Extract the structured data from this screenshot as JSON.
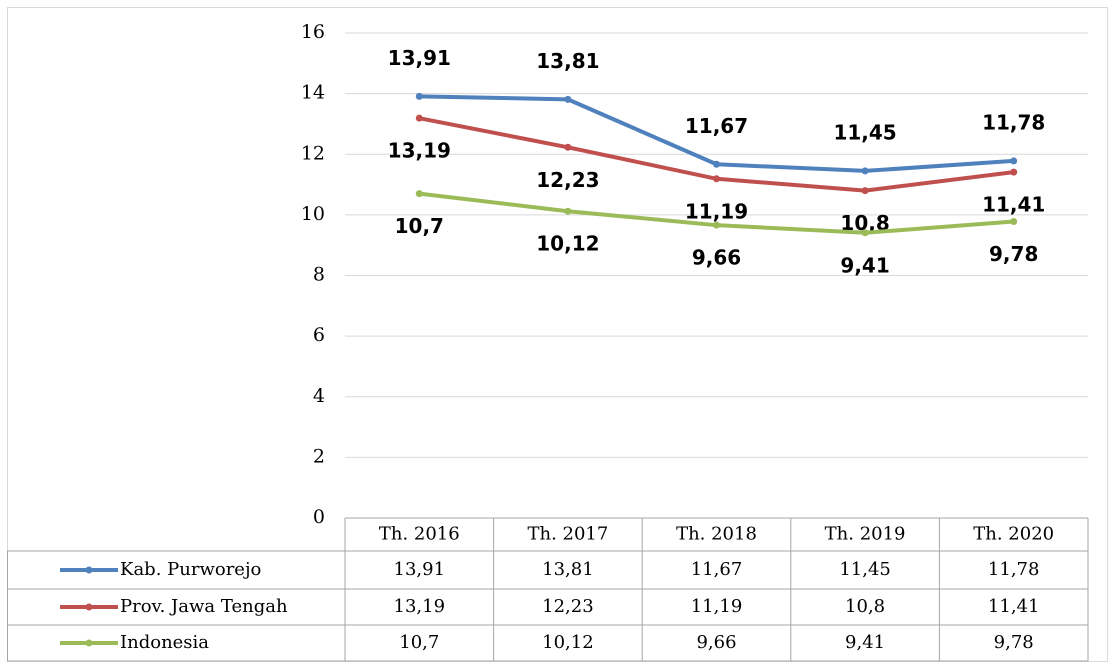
{
  "chart_data": {
    "type": "line",
    "categories": [
      "Th. 2016",
      "Th. 2017",
      "Th. 2018",
      "Th. 2019",
      "Th. 2020"
    ],
    "series": [
      {
        "name": "Kab. Purworejo",
        "color": "#4f81bd",
        "values": [
          13.91,
          13.81,
          11.67,
          11.45,
          11.78
        ],
        "value_labels": [
          "13,91",
          "13,81",
          "11,67",
          "11,45",
          "11,78"
        ]
      },
      {
        "name": "Prov. Jawa Tengah",
        "color": "#c0504d",
        "values": [
          13.19,
          12.23,
          11.19,
          10.8,
          11.41
        ],
        "value_labels": [
          "13,19",
          "12,23",
          "11,19",
          "10,8",
          "11,41"
        ]
      },
      {
        "name": "Indonesia",
        "color": "#9bbb59",
        "values": [
          10.7,
          10.12,
          9.66,
          9.41,
          9.78
        ],
        "value_labels": [
          "10,7",
          "10,12",
          "9,66",
          "9,41",
          "9,78"
        ]
      }
    ],
    "ylim": [
      0,
      16
    ],
    "yticks": [
      0,
      2,
      4,
      6,
      8,
      10,
      12,
      14,
      16
    ],
    "grid": true,
    "data_table": true
  }
}
